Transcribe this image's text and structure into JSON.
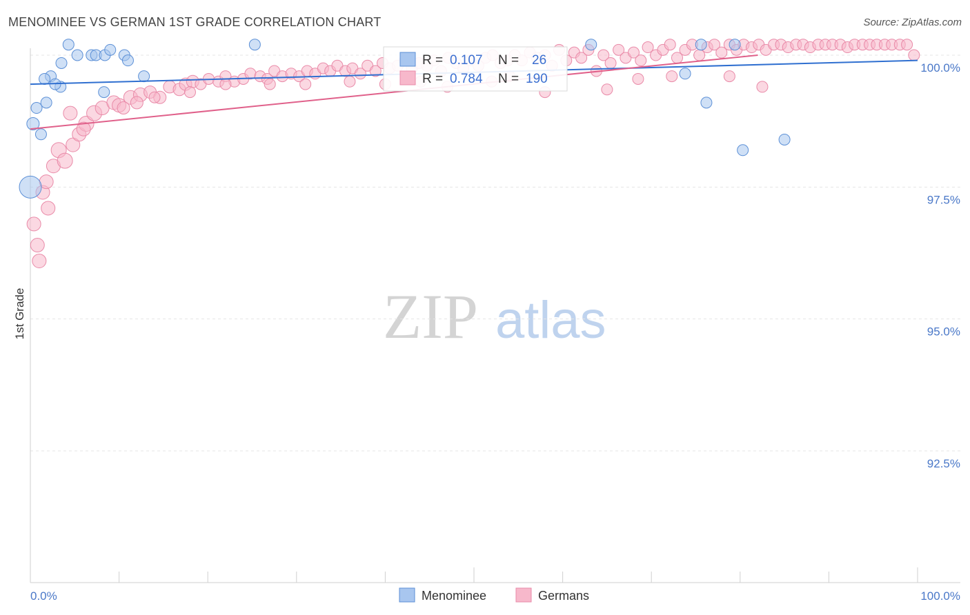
{
  "title": "MENOMINEE VS GERMAN 1ST GRADE CORRELATION CHART",
  "source": "Source: ZipAtlas.com",
  "watermark": {
    "zip": "ZIP",
    "atlas": "atlas"
  },
  "chart_data": {
    "type": "scatter",
    "ylabel": "1st Grade",
    "x_range": [
      0,
      100
    ],
    "y_range": [
      90.5,
      100.4
    ],
    "y_ticks": [
      {
        "value": 100.0,
        "label": "100.0%"
      },
      {
        "value": 97.5,
        "label": "97.5%"
      },
      {
        "value": 95.0,
        "label": "95.0%"
      },
      {
        "value": 92.5,
        "label": "92.5%"
      }
    ],
    "x_tick_labels": {
      "left": "0.0%",
      "right": "100.0%"
    },
    "grid": true,
    "legend_position": "bottom",
    "series": [
      {
        "name": "Menominee",
        "color": "#a8c6ef",
        "stroke": "#5b8fd6",
        "line_color": "#2f6fd0",
        "stats": {
          "r_label": "R =",
          "r": "0.107",
          "n_label": "N =",
          "n": "26"
        },
        "trend": {
          "x": [
            0,
            100
          ],
          "y": [
            99.45,
            99.9
          ]
        },
        "points": [
          [
            0.3,
            98.7,
            9
          ],
          [
            1.2,
            98.5,
            8
          ],
          [
            0.7,
            99.0,
            8
          ],
          [
            1.8,
            99.1,
            8
          ],
          [
            2.3,
            99.6,
            8
          ],
          [
            3.4,
            99.4,
            8
          ],
          [
            5.3,
            100.0,
            8
          ],
          [
            6.9,
            100.0,
            8
          ],
          [
            7.4,
            100.0,
            8
          ],
          [
            3.5,
            99.85,
            8
          ],
          [
            4.3,
            100.2,
            8
          ],
          [
            8.4,
            100.0,
            8
          ],
          [
            9.0,
            100.1,
            8
          ],
          [
            10.6,
            100.0,
            8
          ],
          [
            11.0,
            99.9,
            8
          ],
          [
            8.3,
            99.3,
            8
          ],
          [
            1.6,
            99.55,
            8
          ],
          [
            2.8,
            99.45,
            8
          ],
          [
            12.8,
            99.6,
            8
          ],
          [
            25.3,
            100.2,
            8
          ],
          [
            63.2,
            100.2,
            8
          ],
          [
            75.6,
            100.2,
            8
          ],
          [
            79.4,
            100.2,
            8
          ],
          [
            73.8,
            99.65,
            8
          ],
          [
            76.2,
            99.1,
            8
          ],
          [
            80.3,
            98.2,
            8
          ],
          [
            85.0,
            98.4,
            8
          ],
          [
            0.0,
            97.5,
            16
          ]
        ]
      },
      {
        "name": "Germans",
        "color": "#f7b8cb",
        "stroke": "#e98aa8",
        "line_color": "#e0608a",
        "stats": {
          "r_label": "R =",
          "r": "0.784",
          "n_label": "N =",
          "n": "190"
        },
        "trend": {
          "x": [
            0,
            82
          ],
          "y": [
            98.6,
            100.0
          ]
        },
        "points": [
          [
            0.4,
            96.8,
            10
          ],
          [
            0.8,
            96.4,
            10
          ],
          [
            1.4,
            97.4,
            10
          ],
          [
            1.8,
            97.6,
            10
          ],
          [
            2.6,
            97.9,
            10
          ],
          [
            3.2,
            98.2,
            11
          ],
          [
            3.9,
            98.0,
            11
          ],
          [
            4.8,
            98.3,
            10
          ],
          [
            5.5,
            98.5,
            10
          ],
          [
            6.3,
            98.7,
            11
          ],
          [
            7.2,
            98.9,
            11
          ],
          [
            8.1,
            99.0,
            10
          ],
          [
            9.4,
            99.1,
            10
          ],
          [
            10.0,
            99.05,
            10
          ],
          [
            11.3,
            99.2,
            10
          ],
          [
            12.4,
            99.25,
            10
          ],
          [
            13.5,
            99.3,
            9
          ],
          [
            14.6,
            99.2,
            9
          ],
          [
            15.7,
            99.4,
            9
          ],
          [
            16.8,
            99.35,
            9
          ],
          [
            17.5,
            99.45,
            9
          ],
          [
            18.3,
            99.5,
            9
          ],
          [
            19.2,
            99.45,
            8
          ],
          [
            20.1,
            99.55,
            8
          ],
          [
            21.2,
            99.5,
            8
          ],
          [
            22.0,
            99.6,
            8
          ],
          [
            23.0,
            99.5,
            8
          ],
          [
            24.0,
            99.55,
            8
          ],
          [
            24.8,
            99.65,
            8
          ],
          [
            25.9,
            99.6,
            8
          ],
          [
            26.7,
            99.55,
            8
          ],
          [
            27.5,
            99.7,
            8
          ],
          [
            28.4,
            99.6,
            8
          ],
          [
            29.4,
            99.65,
            8
          ],
          [
            30.3,
            99.6,
            8
          ],
          [
            31.2,
            99.7,
            8
          ],
          [
            32.1,
            99.65,
            8
          ],
          [
            33.0,
            99.75,
            8
          ],
          [
            33.8,
            99.7,
            8
          ],
          [
            34.6,
            99.8,
            8
          ],
          [
            35.5,
            99.7,
            8
          ],
          [
            36.3,
            99.75,
            8
          ],
          [
            37.2,
            99.65,
            8
          ],
          [
            38.0,
            99.8,
            8
          ],
          [
            38.9,
            99.7,
            8
          ],
          [
            39.7,
            99.85,
            8
          ],
          [
            40.5,
            99.75,
            8
          ],
          [
            41.4,
            99.8,
            8
          ],
          [
            42.2,
            99.9,
            8
          ],
          [
            43.0,
            99.75,
            8
          ],
          [
            43.8,
            99.85,
            8
          ],
          [
            44.7,
            99.8,
            8
          ],
          [
            45.5,
            99.9,
            8
          ],
          [
            46.3,
            99.7,
            8
          ],
          [
            47.1,
            99.95,
            8
          ],
          [
            48.0,
            99.85,
            8
          ],
          [
            48.8,
            99.75,
            8
          ],
          [
            49.6,
            99.9,
            8
          ],
          [
            50.5,
            99.8,
            8
          ],
          [
            51.3,
            99.95,
            8
          ],
          [
            52.1,
            100.0,
            8
          ],
          [
            53.0,
            99.85,
            8
          ],
          [
            53.8,
            99.9,
            8
          ],
          [
            54.6,
            100.0,
            8
          ],
          [
            55.4,
            99.9,
            8
          ],
          [
            56.3,
            100.05,
            8
          ],
          [
            57.1,
            99.95,
            8
          ],
          [
            58.0,
            100.0,
            8
          ],
          [
            58.8,
            99.8,
            8
          ],
          [
            59.6,
            100.1,
            8
          ],
          [
            60.4,
            99.9,
            8
          ],
          [
            61.3,
            100.05,
            8
          ],
          [
            62.1,
            99.95,
            8
          ],
          [
            62.9,
            100.1,
            8
          ],
          [
            63.8,
            99.7,
            8
          ],
          [
            64.6,
            100.0,
            8
          ],
          [
            65.4,
            99.85,
            8
          ],
          [
            66.3,
            100.1,
            8
          ],
          [
            67.1,
            99.95,
            8
          ],
          [
            68.0,
            100.05,
            8
          ],
          [
            68.8,
            99.9,
            8
          ],
          [
            69.6,
            100.15,
            8
          ],
          [
            70.5,
            100.0,
            8
          ],
          [
            71.3,
            100.1,
            8
          ],
          [
            72.1,
            100.2,
            8
          ],
          [
            72.9,
            99.95,
            8
          ],
          [
            73.8,
            100.1,
            8
          ],
          [
            74.6,
            100.2,
            8
          ],
          [
            75.4,
            100.0,
            8
          ],
          [
            76.3,
            100.15,
            8
          ],
          [
            77.1,
            100.2,
            8
          ],
          [
            77.9,
            100.05,
            8
          ],
          [
            78.8,
            100.2,
            8
          ],
          [
            79.6,
            100.1,
            8
          ],
          [
            80.4,
            100.2,
            8
          ],
          [
            81.3,
            100.15,
            8
          ],
          [
            82.1,
            100.2,
            8
          ],
          [
            82.9,
            100.1,
            8
          ],
          [
            83.8,
            100.2,
            8
          ],
          [
            84.6,
            100.2,
            8
          ],
          [
            85.4,
            100.15,
            8
          ],
          [
            86.3,
            100.2,
            8
          ],
          [
            87.1,
            100.2,
            8
          ],
          [
            87.9,
            100.15,
            8
          ],
          [
            88.8,
            100.2,
            8
          ],
          [
            89.6,
            100.2,
            8
          ],
          [
            90.4,
            100.2,
            8
          ],
          [
            91.3,
            100.2,
            8
          ],
          [
            92.1,
            100.15,
            8
          ],
          [
            92.9,
            100.2,
            8
          ],
          [
            93.8,
            100.2,
            8
          ],
          [
            94.6,
            100.2,
            8
          ],
          [
            95.4,
            100.2,
            8
          ],
          [
            96.3,
            100.2,
            8
          ],
          [
            97.1,
            100.2,
            8
          ],
          [
            98.0,
            100.2,
            8
          ],
          [
            98.8,
            100.2,
            8
          ],
          [
            99.6,
            100.0,
            8
          ],
          [
            58.0,
            99.3,
            8
          ],
          [
            65.0,
            99.35,
            8
          ],
          [
            68.5,
            99.55,
            8
          ],
          [
            72.3,
            99.6,
            8
          ],
          [
            78.8,
            99.6,
            8
          ],
          [
            82.5,
            99.4,
            8
          ],
          [
            47.0,
            99.4,
            8
          ],
          [
            52.0,
            99.5,
            8
          ],
          [
            54.0,
            99.6,
            8
          ],
          [
            44.0,
            99.5,
            8
          ],
          [
            40.0,
            99.45,
            8
          ],
          [
            36.0,
            99.5,
            8
          ],
          [
            31.0,
            99.45,
            8
          ],
          [
            27.0,
            99.45,
            8
          ],
          [
            22.0,
            99.45,
            8
          ],
          [
            18.0,
            99.3,
            8
          ],
          [
            14.0,
            99.2,
            8
          ],
          [
            10.5,
            99.0,
            9
          ],
          [
            12.0,
            99.1,
            9
          ],
          [
            6.0,
            98.6,
            10
          ],
          [
            4.5,
            98.9,
            10
          ],
          [
            2.0,
            97.1,
            10
          ],
          [
            1.0,
            96.1,
            10
          ]
        ]
      }
    ]
  }
}
